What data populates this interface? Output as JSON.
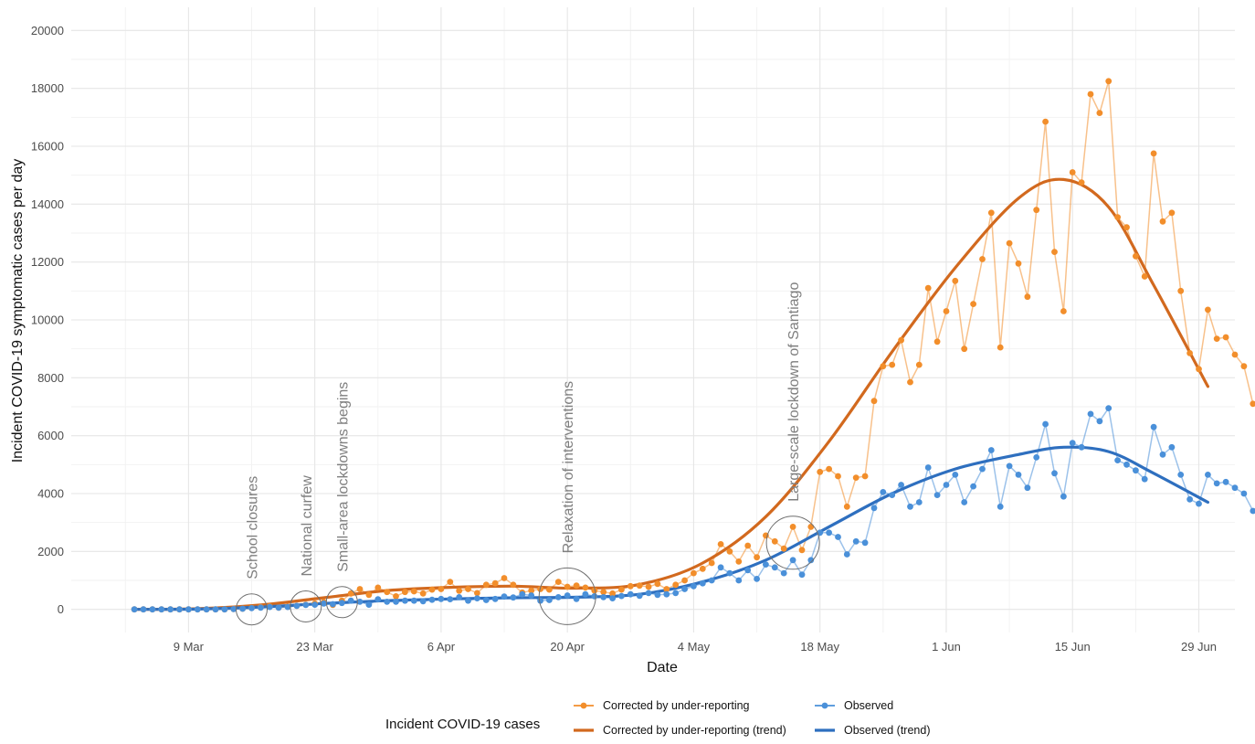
{
  "chart_data": {
    "type": "line",
    "xlabel": "Date",
    "ylabel": "Incident COVID-19 symptomatic cases per day",
    "ylim": [
      -800,
      20800
    ],
    "y_ticks": [
      0,
      2000,
      4000,
      6000,
      8000,
      10000,
      12000,
      14000,
      16000,
      18000,
      20000
    ],
    "y_tick_labels": [
      "0",
      "2000",
      "4000",
      "6000",
      "8000",
      "10000",
      "12000",
      "14000",
      "16000",
      "18000",
      "20000"
    ],
    "x_range": [
      "2020-02-25",
      "2020-07-03"
    ],
    "x_ticks": [
      "2020-03-09",
      "2020-03-23",
      "2020-04-06",
      "2020-04-20",
      "2020-05-04",
      "2020-05-18",
      "2020-06-01",
      "2020-06-15",
      "2020-06-29"
    ],
    "x_tick_labels": [
      "9 Mar",
      "23 Mar",
      "6 Apr",
      "20 Apr",
      "4 May",
      "18 May",
      "1 Jun",
      "15 Jun",
      "29 Jun"
    ],
    "x_start": "2020-03-03",
    "grid": true,
    "legend": {
      "title": "Incident COVID-19 cases",
      "placement": "bottom",
      "entries": [
        "Corrected by under-reporting",
        "Corrected by under-reporting (trend)",
        "Observed",
        "Observed (trend)"
      ]
    },
    "series": [
      {
        "name": "Corrected by under-reporting",
        "color": "#f28e2b",
        "style": "points+line",
        "values": [
          0,
          0,
          0,
          0,
          0,
          0,
          0,
          0,
          0,
          0,
          0,
          10,
          20,
          50,
          80,
          100,
          60,
          90,
          120,
          160,
          200,
          250,
          150,
          300,
          550,
          700,
          500,
          750,
          600,
          450,
          600,
          620,
          550,
          680,
          700,
          950,
          640,
          700,
          560,
          850,
          900,
          1080,
          850,
          580,
          650,
          700,
          680,
          950,
          780,
          820,
          750,
          650,
          600,
          550,
          680,
          800,
          820,
          780,
          880,
          700,
          850,
          1000,
          1250,
          1400,
          1600,
          2250,
          2000,
          1650,
          2200,
          1800,
          2550,
          2350,
          2100,
          2850,
          2050,
          2850,
          4750,
          4850,
          4600,
          3550,
          4550,
          4600,
          7200,
          8400,
          8450,
          9300,
          7850,
          8450,
          11100,
          9250,
          10300,
          11350,
          9000,
          10550,
          12100,
          13700,
          9050,
          12650,
          11950,
          10800,
          13800,
          16850,
          12350,
          10300,
          15100,
          14750,
          17800,
          17150,
          18250,
          13550,
          13200,
          12200,
          11500,
          15750,
          13400,
          13700,
          11000,
          8850,
          8300,
          10350,
          9350,
          9400,
          8800,
          8400,
          7100
        ]
      },
      {
        "name": "Observed",
        "color": "#4a90d9",
        "style": "points+line",
        "values": [
          0,
          0,
          0,
          0,
          0,
          0,
          0,
          0,
          0,
          0,
          0,
          10,
          20,
          40,
          60,
          80,
          60,
          80,
          120,
          150,
          160,
          200,
          180,
          220,
          300,
          260,
          160,
          350,
          260,
          260,
          300,
          300,
          280,
          330,
          360,
          350,
          420,
          300,
          380,
          320,
          360,
          440,
          410,
          520,
          480,
          300,
          320,
          420,
          480,
          360,
          520,
          450,
          420,
          380,
          460,
          520,
          470,
          560,
          500,
          520,
          560,
          700,
          800,
          900,
          1000,
          1450,
          1250,
          1000,
          1350,
          1050,
          1550,
          1450,
          1250,
          1700,
          1200,
          1700,
          2650,
          2650,
          2500,
          1900,
          2350,
          2300,
          3500,
          4050,
          3950,
          4300,
          3550,
          3700,
          4900,
          3950,
          4300,
          4650,
          3700,
          4250,
          4850,
          5500,
          3550,
          4950,
          4650,
          4200,
          5250,
          6400,
          4700,
          3900,
          5750,
          5600,
          6750,
          6500,
          6950,
          5150,
          5000,
          4800,
          4500,
          6300,
          5350,
          5600,
          4650,
          3800,
          3650,
          4650,
          4350,
          4400,
          4200,
          4000,
          3400
        ]
      },
      {
        "name": "Corrected by under-reporting (trend)",
        "color": "#d2691e",
        "style": "line",
        "x": [
          "2020-03-03",
          "2020-03-10",
          "2020-03-17",
          "2020-03-24",
          "2020-03-31",
          "2020-04-07",
          "2020-04-14",
          "2020-04-21",
          "2020-04-28",
          "2020-05-05",
          "2020-05-12",
          "2020-05-19",
          "2020-05-26",
          "2020-06-02",
          "2020-06-09",
          "2020-06-14",
          "2020-06-19",
          "2020-06-24",
          "2020-06-30"
        ],
        "values": [
          0,
          20,
          150,
          400,
          650,
          760,
          800,
          730,
          860,
          1600,
          3200,
          5800,
          8900,
          11800,
          14200,
          14850,
          13900,
          11200,
          7700
        ]
      },
      {
        "name": "Observed (trend)",
        "color": "#2e6fbf",
        "style": "line",
        "x": [
          "2020-03-03",
          "2020-03-10",
          "2020-03-17",
          "2020-03-24",
          "2020-03-31",
          "2020-04-07",
          "2020-04-14",
          "2020-04-21",
          "2020-04-28",
          "2020-05-05",
          "2020-05-12",
          "2020-05-19",
          "2020-05-26",
          "2020-06-02",
          "2020-06-09",
          "2020-06-14",
          "2020-06-19",
          "2020-06-24",
          "2020-06-30"
        ],
        "values": [
          0,
          10,
          80,
          200,
          300,
          360,
          400,
          420,
          520,
          950,
          1700,
          2850,
          4000,
          4850,
          5350,
          5600,
          5450,
          4700,
          3700
        ]
      }
    ],
    "annotations": [
      {
        "text": "School closures",
        "date": "2020-03-16",
        "y": 0
      },
      {
        "text": "National curfew",
        "date": "2020-03-22",
        "y": 100
      },
      {
        "text": "Small-area lockdowns begins",
        "date": "2020-03-26",
        "y": 250
      },
      {
        "text": "Relaxation of interventions",
        "date": "2020-04-20",
        "y": 450
      },
      {
        "text": "Large-scale lockdown of Santiago",
        "date": "2020-05-15",
        "y": 2300
      }
    ]
  }
}
